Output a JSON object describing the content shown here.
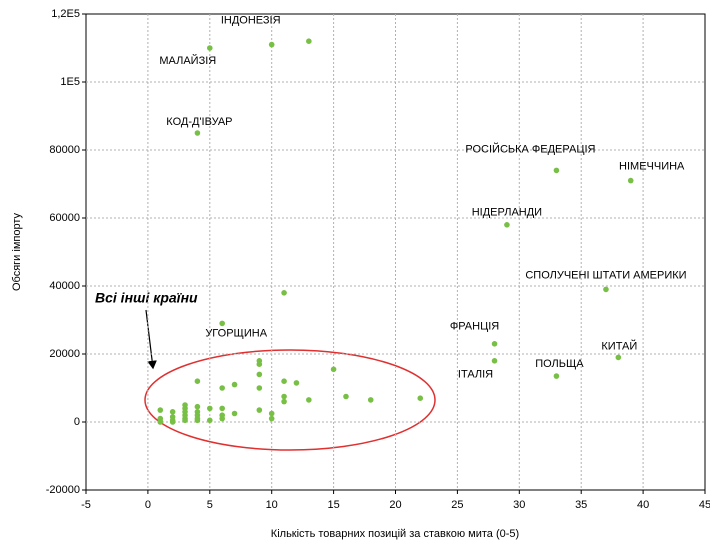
{
  "chart_data": {
    "type": "scatter",
    "x_label": "Кількість товарних позицій за ставкою мита (0-5)",
    "y_label": "Обсяги імпорту",
    "annotation": "Всі інші країни",
    "color": "#78bf45",
    "grid": true,
    "xlim": [
      -5,
      45
    ],
    "xticks": [
      -5,
      0,
      5,
      10,
      15,
      20,
      25,
      30,
      35,
      40,
      45
    ],
    "ylim": [
      -20000,
      120000
    ],
    "yticks": [
      -20000,
      0,
      20000,
      40000,
      60000,
      80000,
      {
        "value": 100000,
        "label": "1E5"
      },
      {
        "value": 120000,
        "label": "1,2E5"
      }
    ],
    "series": [
      {
        "x": [
          10,
          5,
          4,
          33,
          39,
          29,
          37,
          28,
          28,
          33,
          38,
          6,
          13,
          11,
          1,
          1,
          1,
          1,
          2,
          2,
          2,
          2,
          3,
          3,
          3,
          3,
          3,
          3,
          4,
          4,
          4,
          4,
          4,
          4,
          5,
          5,
          6,
          6,
          6,
          6,
          7,
          7,
          9,
          9,
          9,
          9,
          9,
          10,
          10,
          11,
          11,
          11,
          12,
          13,
          15,
          16,
          18,
          22
        ],
        "values": [
          111000,
          110000,
          85000,
          74000,
          71000,
          58000,
          39000,
          23000,
          18000,
          13500,
          19000,
          29000,
          112000,
          38000,
          3500,
          1000,
          200,
          0,
          3000,
          1500,
          500,
          0,
          5000,
          4000,
          3000,
          2000,
          1000,
          500,
          12000,
          4500,
          3000,
          2000,
          1000,
          500,
          4000,
          500,
          10000,
          4000,
          2000,
          1000,
          11000,
          2500,
          18000,
          17000,
          14000,
          10000,
          3500,
          2500,
          1000,
          12000,
          7500,
          6000,
          11500,
          6500,
          15500,
          7500,
          6500,
          7000
        ],
        "labels": [
          "ІНДОНЕЗІЯ",
          "МАЛАЙЗІЯ",
          "КОД-Д'ІВУАР",
          "РОСІЙСЬКА ФЕДЕРАЦІЯ",
          "НІМЕЧЧИНА",
          "НІДЕРЛАНДИ",
          "СПОЛУЧЕНІ ШТАТИ АМЕРИКИ",
          "ФРАНЦІЯ",
          "ІТАЛІЯ",
          "ПОЛЬЩА",
          "КИТАЙ",
          "УГОРЩИНА",
          null,
          null,
          null,
          null,
          null,
          null,
          null,
          null,
          null,
          null,
          null,
          null,
          null,
          null,
          null,
          null,
          null,
          null,
          null,
          null,
          null,
          null,
          null,
          null,
          null,
          null,
          null,
          null,
          null,
          null,
          null,
          null,
          null,
          null,
          null,
          null,
          null,
          null,
          null,
          null,
          null,
          null,
          null,
          null,
          null,
          null
        ]
      }
    ]
  }
}
